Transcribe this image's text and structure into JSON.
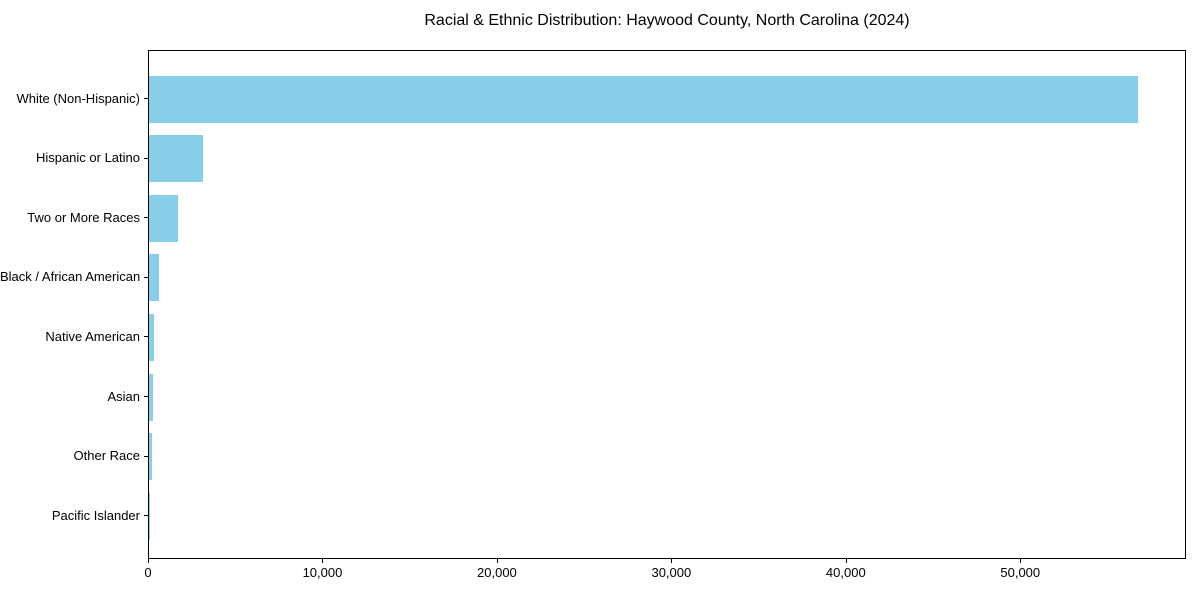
{
  "chart_data": {
    "type": "bar",
    "orientation": "horizontal",
    "title": "Racial & Ethnic Distribution: Haywood County, North Carolina (2024)",
    "categories": [
      "White (Non-Hispanic)",
      "Hispanic or Latino",
      "Two or More Races",
      "Black / African American",
      "Native American",
      "Asian",
      "Other Race",
      "Pacific Islander"
    ],
    "values": [
      56700,
      3100,
      1660,
      550,
      270,
      230,
      150,
      25
    ],
    "xlabel": "",
    "ylabel": "",
    "xlim": [
      0,
      59500
    ],
    "x_ticks": [
      0,
      10000,
      20000,
      30000,
      40000,
      50000
    ],
    "x_tick_labels": [
      "0",
      "10,000",
      "20,000",
      "30,000",
      "40,000",
      "50,000"
    ],
    "bar_color": "#87CEEB",
    "background_color": "#FFFFFF",
    "text_color": "#000000",
    "grid": false,
    "legend_position": "none"
  }
}
